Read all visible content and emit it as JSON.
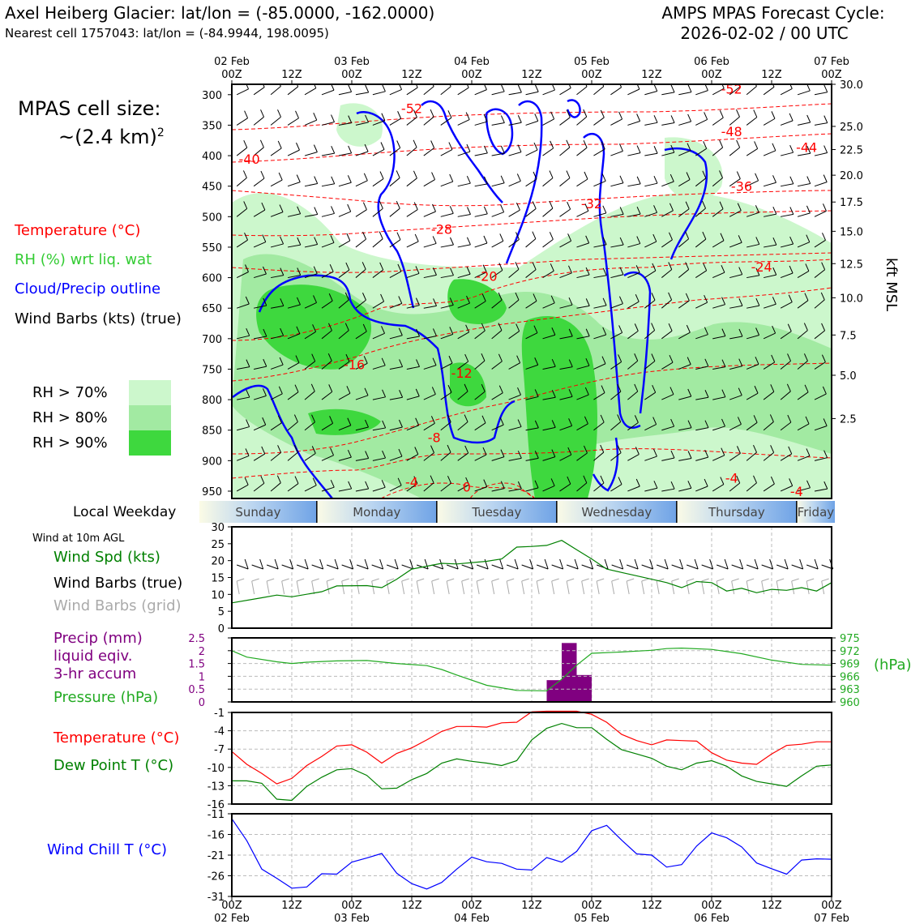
{
  "header": {
    "title": "Axel Heiberg Glacier: lat/lon = (-85.0000, -162.0000)",
    "subtitle": "Nearest cell 1757043: lat/lon = (-84.9944, 198.0095)",
    "cycle_title": "AMPS MPAS Forecast Cycle:",
    "cycle_value": "2026-02-02 / 00 UTC"
  },
  "legend": {
    "cell_size_label": "MPAS cell size:",
    "cell_size_value": "~(2.4 km)",
    "cell_size_exp": "2",
    "temperature": "Temperature (°C)",
    "rh": "RH (%) wrt liq. wat",
    "cloud": "Cloud/Precip outline",
    "wind": "Wind Barbs (kts) (true)",
    "rh70": "RH > 70%",
    "rh80": "RH > 80%",
    "rh90": "RH > 90%",
    "weekday_label": "Local Weekday",
    "wind10m_title": "Wind at 10m AGL",
    "wind_spd": "Wind Spd (kts)",
    "wind_barbs_true": "Wind Barbs (true)",
    "wind_barbs_grid": "Wind Barbs (grid)",
    "precip_l1": "Precip (mm)",
    "precip_l2": "liquid eqiv.",
    "precip_l3": "3-hr accum",
    "pressure": "Pressure (hPa)",
    "pressure_unit": "(hPa)",
    "temp2": "Temperature (°C)",
    "dewpoint": "Dew Point T (°C)",
    "windchill": "Wind Chill T (°C)",
    "kft_msl": "kft MSL"
  },
  "colors": {
    "temp": "#ff0000",
    "rh": "#33cc33",
    "cloud": "#0000ff",
    "precip": "#800080",
    "pressure": "#22aa22",
    "dew": "#008000",
    "windchill": "#0000ff",
    "grid_barb": "#aaaaaa",
    "rh70": "#ccf7cc",
    "rh80": "#a2eaa2",
    "rh90": "#3ed83e"
  },
  "weekdays": [
    "Sunday",
    "Monday",
    "Tuesday",
    "Wednesday",
    "Thursday",
    "Friday"
  ],
  "chart_data": [
    {
      "type": "heatmap",
      "title": "Time-height cross section (temperature, RH, cloud, wind)",
      "top_ticks": [
        {
          "date": "02 Feb",
          "hour": "00Z"
        },
        {
          "date": "",
          "hour": "12Z"
        },
        {
          "date": "03 Feb",
          "hour": "00Z"
        },
        {
          "date": "",
          "hour": "12Z"
        },
        {
          "date": "04 Feb",
          "hour": "00Z"
        },
        {
          "date": "",
          "hour": "12Z"
        },
        {
          "date": "05 Feb",
          "hour": "00Z"
        },
        {
          "date": "",
          "hour": "12Z"
        },
        {
          "date": "06 Feb",
          "hour": "00Z"
        },
        {
          "date": "",
          "hour": "12Z"
        },
        {
          "date": "07 Feb",
          "hour": "00Z"
        }
      ],
      "xlim_hours": [
        0,
        120
      ],
      "pressure_ticks": [
        300,
        350,
        400,
        450,
        500,
        550,
        600,
        650,
        700,
        750,
        800,
        850,
        900,
        950
      ],
      "ylim_hpa": [
        283,
        962
      ],
      "height_ticks_kft": [
        {
          "label": "30.0",
          "p": 283
        },
        {
          "label": "25.0",
          "p": 352
        },
        {
          "label": "22.5",
          "p": 390
        },
        {
          "label": "20.0",
          "p": 432
        },
        {
          "label": "17.5",
          "p": 476
        },
        {
          "label": "15.0",
          "p": 524
        },
        {
          "label": "12.5",
          "p": 577
        },
        {
          "label": "10.0",
          "p": 633
        },
        {
          "label": "7.5",
          "p": 694
        },
        {
          "label": "5.0",
          "p": 760
        },
        {
          "label": "2.5",
          "p": 831
        }
      ],
      "temp_contour_labels": [
        {
          "text": "-52",
          "h": 36,
          "p": 322
        },
        {
          "text": "-52",
          "h": 100,
          "p": 290
        },
        {
          "text": "-48",
          "h": 100,
          "p": 360
        },
        {
          "text": "-44",
          "h": 115,
          "p": 386
        },
        {
          "text": "-40",
          "h": 3.5,
          "p": 405
        },
        {
          "text": "-36",
          "h": 102,
          "p": 450
        },
        {
          "text": "-32",
          "h": 72,
          "p": 478
        },
        {
          "text": "-28",
          "h": 42,
          "p": 520
        },
        {
          "text": "-24",
          "h": 106,
          "p": 582
        },
        {
          "text": "-20",
          "h": 51,
          "p": 597
        },
        {
          "text": "-16",
          "h": 24.5,
          "p": 742
        },
        {
          "text": "-12",
          "h": 46,
          "p": 756
        },
        {
          "text": "-8",
          "h": 40.5,
          "p": 862
        },
        {
          "text": "-4",
          "h": 36,
          "p": 935
        },
        {
          "text": "0",
          "h": 47,
          "p": 943
        },
        {
          "text": "-4",
          "h": 100,
          "p": 928
        },
        {
          "text": "-4",
          "h": 113,
          "p": 950
        }
      ]
    },
    {
      "type": "line",
      "title": "Wind at 10m AGL",
      "ylabel": "Wind Spd (kts)",
      "ylim": [
        0,
        30
      ],
      "yticks": [
        0,
        5,
        10,
        15,
        20,
        25,
        30
      ],
      "x_hours": [
        0,
        6,
        9,
        12,
        18,
        21,
        27,
        30,
        33,
        36,
        42,
        45,
        51,
        54,
        57,
        60,
        63,
        66,
        69,
        72,
        75,
        78,
        81,
        87,
        90,
        93,
        96,
        99,
        102,
        105,
        108,
        111,
        114,
        117,
        120
      ],
      "values": [
        7.5,
        9,
        9.8,
        9.3,
        10.8,
        12.5,
        12.6,
        12,
        14.5,
        17.5,
        19.2,
        19,
        19.8,
        20.5,
        24,
        24.2,
        24.5,
        26,
        23.2,
        20.5,
        17.5,
        16.5,
        15.5,
        13.5,
        12,
        13.8,
        13.5,
        11,
        11.8,
        10.5,
        11.5,
        11.2,
        12,
        11,
        13.5
      ]
    },
    {
      "type": "bar",
      "title": "Precip (mm) liquid eqiv. 3-hr accum",
      "bin_start_hours": [
        63,
        66,
        69
      ],
      "values": [
        0.85,
        2.3,
        1.05
      ],
      "ylim": [
        0,
        2.5
      ],
      "yticks": [
        0,
        0.5,
        1.0,
        1.5,
        2.0,
        2.5
      ]
    },
    {
      "type": "line",
      "title": "Pressure (hPa)",
      "ylim": [
        960,
        975
      ],
      "yticks": [
        960,
        963,
        966,
        969,
        972,
        975
      ],
      "x_hours": [
        0,
        3,
        9,
        12,
        15,
        21,
        27,
        33,
        39,
        42,
        45,
        51,
        57,
        63,
        66,
        69,
        72,
        78,
        84,
        87,
        90,
        96,
        102,
        108,
        114,
        120
      ],
      "values": [
        972,
        970.5,
        969.4,
        969,
        969.3,
        969.6,
        969.7,
        969,
        968.5,
        967.6,
        966.3,
        963.9,
        962.7,
        962.6,
        965.3,
        968.6,
        971.4,
        971.7,
        972.1,
        972.5,
        972.6,
        972.3,
        971.3,
        969.8,
        968.8,
        968.6
      ]
    },
    {
      "type": "line",
      "title": "Temperature / Dew Point T (°C)",
      "ylim": [
        -16,
        -1
      ],
      "yticks": [
        -16,
        -13,
        -10,
        -7,
        -4,
        -1
      ],
      "series": [
        {
          "name": "Temperature (°C)",
          "x_hours": [
            0,
            3,
            6,
            9,
            12,
            15,
            18,
            21,
            24,
            27,
            30,
            33,
            36,
            39,
            42,
            45,
            48,
            51,
            54,
            57,
            60,
            63,
            66,
            69,
            72,
            75,
            78,
            81,
            84,
            87,
            90,
            93,
            96,
            99,
            102,
            105,
            108,
            111,
            114,
            117,
            120
          ],
          "values": [
            -7.4,
            -9.5,
            -11,
            -12.7,
            -11.8,
            -9.7,
            -8.2,
            -6.5,
            -6.3,
            -7.5,
            -9.3,
            -7.7,
            -6.8,
            -5.5,
            -4.1,
            -3.3,
            -3.3,
            -3.4,
            -2.7,
            -2.6,
            -0.9,
            -0.8,
            -0.8,
            -0.8,
            -1.3,
            -2.6,
            -4.6,
            -5.6,
            -6.3,
            -5.5,
            -5.6,
            -5.7,
            -7.6,
            -8.8,
            -9.3,
            -9.5,
            -7.8,
            -6.4,
            -6.2,
            -5.8,
            -5.8
          ]
        },
        {
          "name": "Dew Point T (°C)",
          "x_hours": [
            0,
            3,
            6,
            9,
            12,
            15,
            18,
            21,
            24,
            27,
            30,
            33,
            36,
            39,
            42,
            45,
            48,
            51,
            54,
            57,
            60,
            63,
            66,
            69,
            72,
            75,
            78,
            81,
            84,
            87,
            90,
            93,
            96,
            99,
            102,
            105,
            108,
            111,
            114,
            117,
            120
          ],
          "values": [
            -12.2,
            -12.2,
            -12.6,
            -15.2,
            -15.4,
            -13.1,
            -11.6,
            -10.4,
            -10.2,
            -11.3,
            -13.5,
            -13.4,
            -12,
            -11,
            -9.3,
            -8.6,
            -9,
            -9.3,
            -9.7,
            -8.9,
            -5.5,
            -3.6,
            -2.8,
            -3.5,
            -3.5,
            -5.4,
            -7.1,
            -7.8,
            -8.5,
            -9.8,
            -10.4,
            -9.3,
            -8.9,
            -9.8,
            -11.4,
            -12.3,
            -12.7,
            -13.1,
            -11.4,
            -9.8,
            -9.6
          ]
        }
      ]
    },
    {
      "type": "line",
      "title": "Wind Chill T (°C)",
      "ylim": [
        -31,
        -11
      ],
      "yticks": [
        -31,
        -26,
        -21,
        -16,
        -11
      ],
      "x_hours": [
        0,
        3,
        6,
        9,
        12,
        15,
        18,
        21,
        24,
        27,
        30,
        33,
        36,
        39,
        42,
        45,
        48,
        51,
        54,
        57,
        60,
        63,
        66,
        69,
        72,
        75,
        78,
        81,
        84,
        87,
        90,
        93,
        96,
        99,
        102,
        105,
        108,
        111,
        114,
        117,
        120
      ],
      "values": [
        -12.2,
        -17.5,
        -24.4,
        -26.6,
        -29,
        -28.7,
        -25.5,
        -25.6,
        -22.7,
        -21.7,
        -20.6,
        -25.4,
        -27.9,
        -29.2,
        -27.6,
        -24.4,
        -21.5,
        -22.6,
        -23,
        -24.4,
        -24.6,
        -21.6,
        -22.7,
        -20.1,
        -15.1,
        -13.8,
        -17.4,
        -20.7,
        -21,
        -23.9,
        -23.3,
        -18.8,
        -15.6,
        -16.8,
        -19,
        -22.9,
        -24.3,
        -25.6,
        -22.2,
        -21.9,
        -22
      ]
    }
  ],
  "bottom_axis": {
    "ticks": [
      {
        "hour": "00Z",
        "date": "02 Feb"
      },
      {
        "hour": "12Z",
        "date": ""
      },
      {
        "hour": "00Z",
        "date": "03 Feb"
      },
      {
        "hour": "12Z",
        "date": ""
      },
      {
        "hour": "00Z",
        "date": "04 Feb"
      },
      {
        "hour": "12Z",
        "date": ""
      },
      {
        "hour": "00Z",
        "date": "05 Feb"
      },
      {
        "hour": "12Z",
        "date": ""
      },
      {
        "hour": "00Z",
        "date": "06 Feb"
      },
      {
        "hour": "12Z",
        "date": ""
      },
      {
        "hour": "00Z",
        "date": "07 Feb"
      }
    ]
  }
}
